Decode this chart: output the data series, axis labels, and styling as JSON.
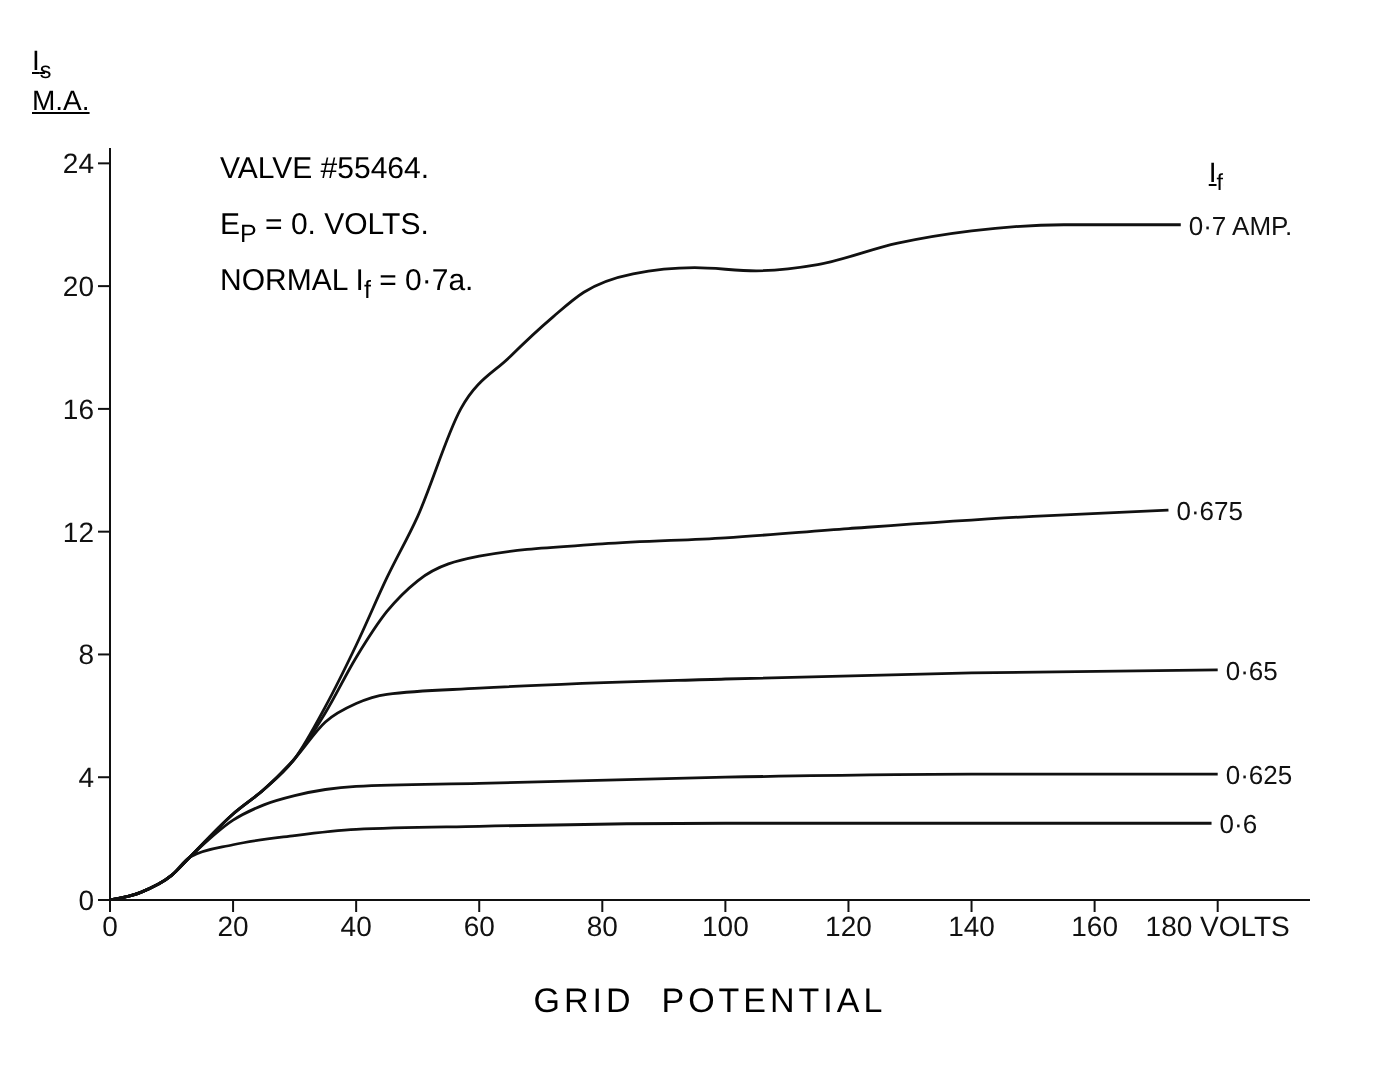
{
  "chart_data": {
    "type": "line",
    "xlabel": "GRID  POTENTIAL",
    "ylabel": "I$_{s}$ M.A.",
    "legend_title": "I$_{f}$",
    "annotations": [
      "VALVE #55464.",
      "E$_{P}$ = 0. VOLTS.",
      "NORMAL I$_{f}$ = 0·7a."
    ],
    "xlim": [
      0,
      195
    ],
    "xticks": [
      0,
      20,
      40,
      60,
      80,
      100,
      120,
      140,
      160,
      {
        "value": 180,
        "label": "180  VOLTS"
      }
    ],
    "ylim": [
      0,
      24.5
    ],
    "yticks": [
      0,
      4,
      8,
      12,
      16,
      20,
      24
    ],
    "marker": "none",
    "series": [
      {
        "name": "0·7 AMP.",
        "color": "#111111",
        "x": [
          0,
          5,
          10,
          13,
          20,
          25,
          30,
          35,
          40,
          45,
          50,
          57,
          65,
          72,
          77,
          85,
          95,
          105,
          115,
          128,
          140,
          155,
          174
        ],
        "values": [
          0,
          0.25,
          0.8,
          1.4,
          2.8,
          3.6,
          4.6,
          6.3,
          8.3,
          10.5,
          12.5,
          16,
          17.7,
          19,
          19.8,
          20.4,
          20.6,
          20.5,
          20.7,
          21.4,
          21.8,
          22,
          22
        ]
      },
      {
        "name": "0·675",
        "color": "#111111",
        "x": [
          0,
          5,
          10,
          13,
          20,
          25,
          30,
          35,
          40,
          45,
          50,
          60,
          80,
          100,
          120,
          150,
          172
        ],
        "values": [
          0,
          0.25,
          0.8,
          1.4,
          2.8,
          3.6,
          4.6,
          6.1,
          7.9,
          9.4,
          10.4,
          11.2,
          11.6,
          11.8,
          12.1,
          12.5,
          12.7
        ]
      },
      {
        "name": "0·65",
        "color": "#111111",
        "x": [
          0,
          5,
          10,
          13,
          20,
          25,
          30,
          35,
          40,
          45,
          60,
          100,
          140,
          180
        ],
        "values": [
          0,
          0.25,
          0.8,
          1.4,
          2.8,
          3.6,
          4.6,
          5.8,
          6.4,
          6.7,
          6.9,
          7.2,
          7.4,
          7.5
        ]
      },
      {
        "name": "0·625",
        "color": "#111111",
        "x": [
          0,
          5,
          10,
          13,
          20,
          25,
          30,
          35,
          40,
          60,
          100,
          140,
          180
        ],
        "values": [
          0,
          0.25,
          0.8,
          1.4,
          2.6,
          3.1,
          3.4,
          3.6,
          3.7,
          3.8,
          4.0,
          4.1,
          4.1
        ]
      },
      {
        "name": "0·6",
        "color": "#111111",
        "x": [
          0,
          5,
          10,
          13,
          20,
          30,
          40,
          60,
          100,
          140,
          179
        ],
        "values": [
          0,
          0.25,
          0.8,
          1.4,
          1.8,
          2.1,
          2.3,
          2.4,
          2.5,
          2.5,
          2.5
        ]
      }
    ]
  }
}
